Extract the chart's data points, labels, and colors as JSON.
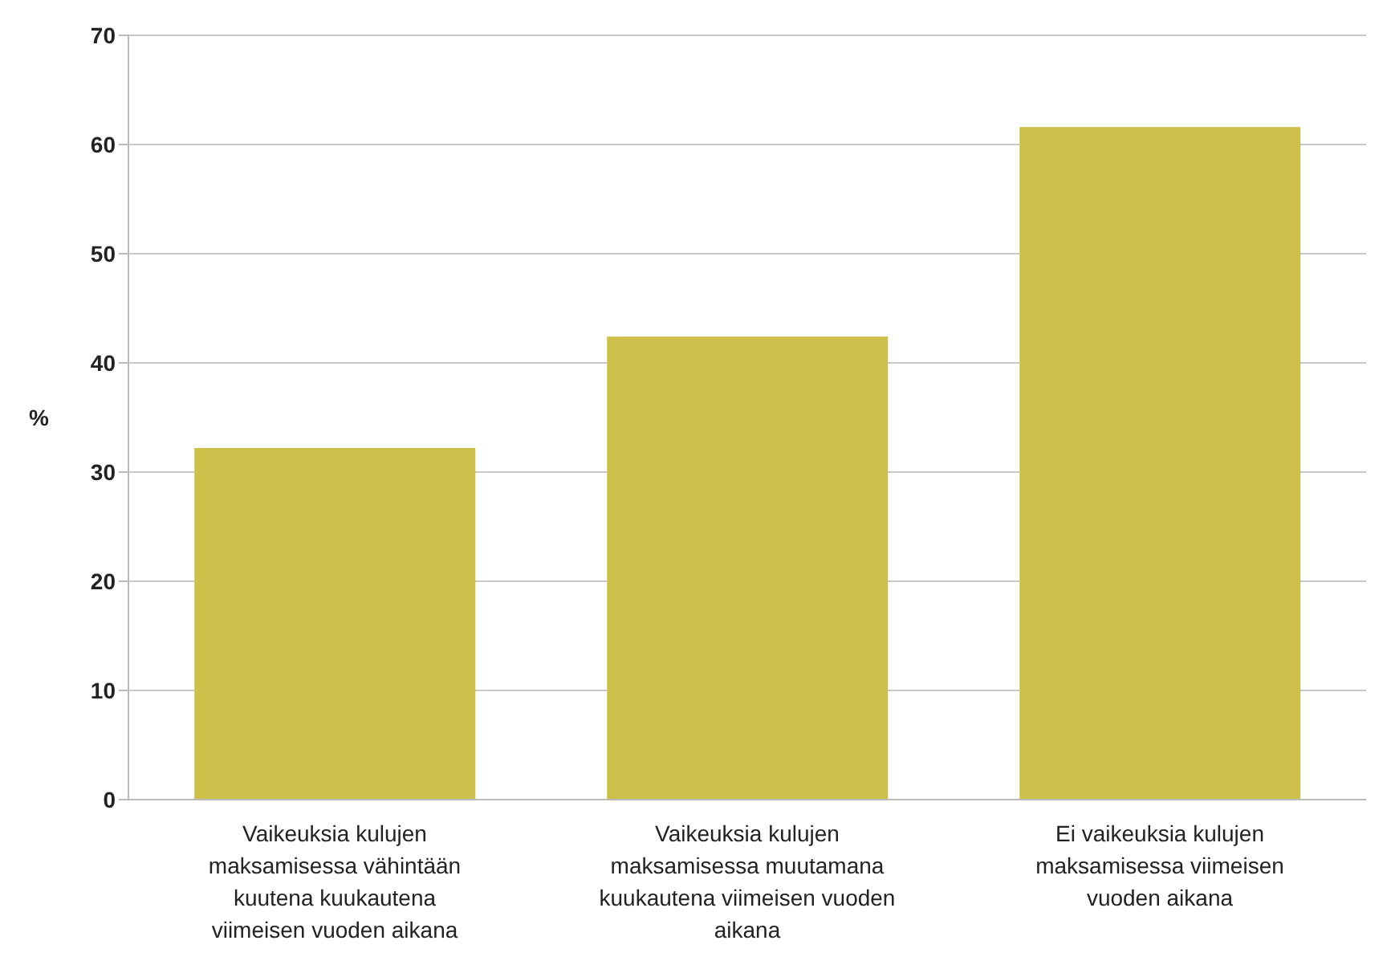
{
  "chart_data": {
    "type": "bar",
    "ylabel": "%",
    "categories": [
      "Vaikeuksia kulujen maksamisessa vähintään kuutena kuukautena viimeisen vuoden aikana",
      "Vaikeuksia kulujen maksamisessa muutamana kuukautena viimeisen vuoden aikana",
      "Ei vaikeuksia kulujen maksamisessa viimeisen vuoden aikana"
    ],
    "values": [
      32.2,
      42.4,
      61.6
    ],
    "color": "#cdc04a",
    "ylim": [
      0,
      70
    ],
    "yticks": [
      0,
      10,
      20,
      30,
      40,
      50,
      60,
      70
    ],
    "grid": "y",
    "legend": false
  }
}
